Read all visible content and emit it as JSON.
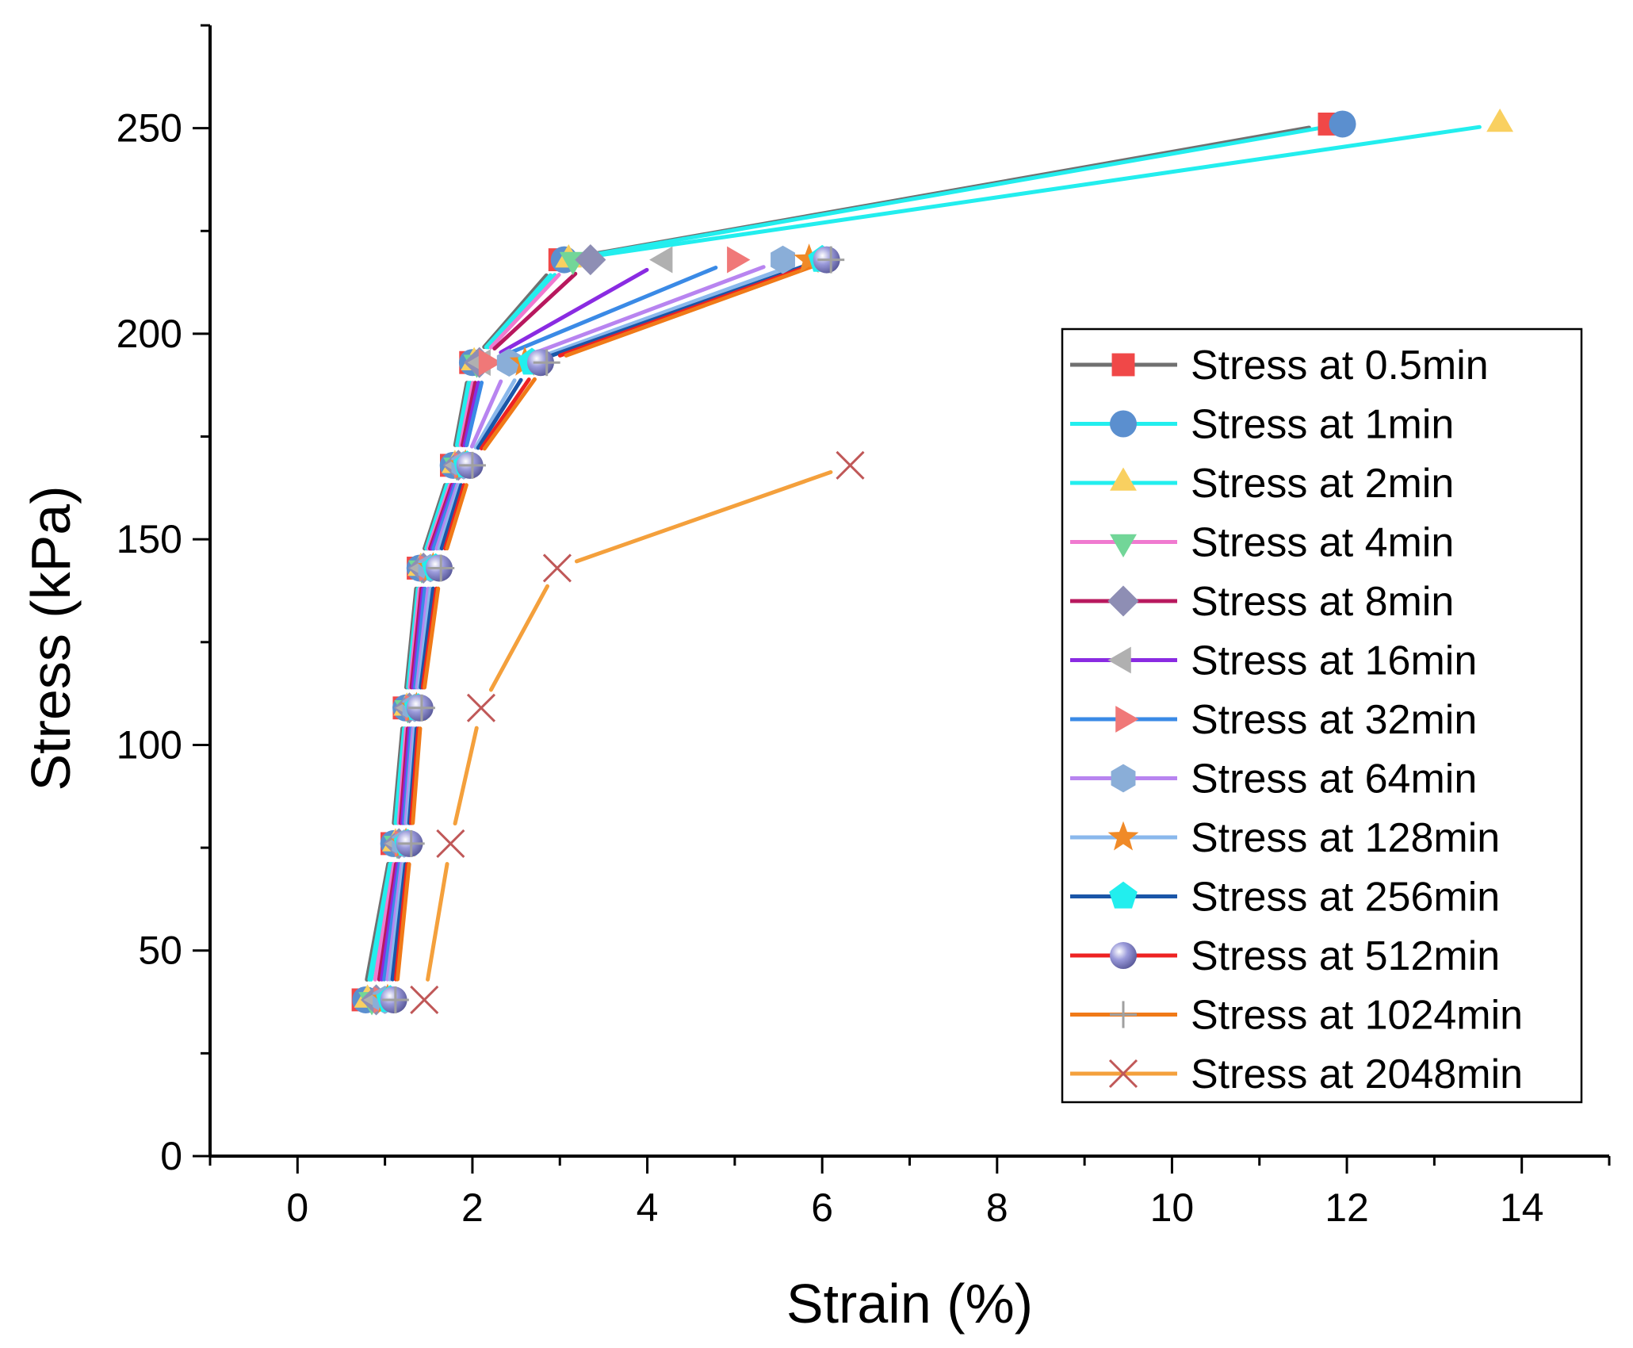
{
  "chart_data": {
    "type": "line",
    "title": "",
    "xlabel": "Strain (%)",
    "ylabel": "Stress (kPa)",
    "xlim": [
      -1,
      15
    ],
    "ylim": [
      0,
      275
    ],
    "xticks": [
      0,
      2,
      4,
      6,
      8,
      10,
      12,
      14
    ],
    "yticks": [
      0,
      50,
      100,
      150,
      200,
      250
    ],
    "grid": false,
    "legend_position": "right",
    "y": [
      38,
      76,
      109,
      143,
      168,
      193,
      218,
      251
    ],
    "series": [
      {
        "name": "Stress at 0.5min",
        "line_color": "#707070",
        "marker": "square",
        "marker_color": "#f04848",
        "x": [
          0.75,
          1.08,
          1.22,
          1.38,
          1.76,
          1.98,
          3.0,
          11.8
        ],
        "y": [
          38,
          76,
          109,
          143,
          168,
          193,
          218,
          251
        ]
      },
      {
        "name": "Stress at 1min",
        "line_color": "#22eeee",
        "marker": "circle",
        "marker_color": "#5b8fcf",
        "x": [
          0.78,
          1.1,
          1.24,
          1.4,
          1.78,
          2.0,
          3.05,
          11.95
        ],
        "y": [
          38,
          76,
          109,
          143,
          168,
          193,
          218,
          251
        ]
      },
      {
        "name": "Stress at 2min",
        "line_color": "#22eeee",
        "marker": "triangle-up",
        "marker_color": "#f9d060",
        "x": [
          0.8,
          1.12,
          1.25,
          1.41,
          1.8,
          2.02,
          3.1,
          13.75
        ],
        "y": [
          38,
          76,
          109,
          143,
          168,
          193,
          218,
          251
        ]
      },
      {
        "name": "Stress at 4min",
        "line_color": "#f07ad0",
        "marker": "triangle-down",
        "marker_color": "#72d698",
        "x": [
          0.85,
          1.14,
          1.26,
          1.42,
          1.82,
          2.05,
          3.15
        ],
        "y": [
          38,
          76,
          109,
          143,
          168,
          193,
          218
        ]
      },
      {
        "name": "Stress at 8min",
        "line_color": "#b8185e",
        "marker": "diamond",
        "marker_color": "#8e8eb4",
        "x": [
          0.9,
          1.16,
          1.28,
          1.44,
          1.84,
          2.08,
          3.35
        ],
        "y": [
          38,
          76,
          109,
          143,
          168,
          193,
          218
        ]
      },
      {
        "name": "Stress at 16min",
        "line_color": "#8a2be2",
        "marker": "triangle-left",
        "marker_color": "#b0b0b0",
        "x": [
          0.93,
          1.18,
          1.3,
          1.46,
          1.86,
          2.12,
          4.2
        ],
        "y": [
          38,
          76,
          109,
          143,
          168,
          193,
          218
        ]
      },
      {
        "name": "Stress at 32min",
        "line_color": "#3a8ae6",
        "marker": "triangle-right",
        "marker_color": "#f07878",
        "x": [
          0.96,
          1.2,
          1.32,
          1.48,
          1.88,
          2.16,
          5.0
        ],
        "y": [
          38,
          76,
          109,
          143,
          168,
          193,
          218
        ]
      },
      {
        "name": "Stress at 64min",
        "line_color": "#b884f0",
        "marker": "hexagon",
        "marker_color": "#8aaed8",
        "x": [
          1.0,
          1.22,
          1.34,
          1.52,
          1.9,
          2.42,
          5.55
        ],
        "y": [
          38,
          76,
          109,
          143,
          168,
          193,
          218
        ]
      },
      {
        "name": "Stress at 128min",
        "line_color": "#8ab8ec",
        "marker": "star",
        "marker_color": "#f08a28",
        "x": [
          1.03,
          1.24,
          1.36,
          1.55,
          1.92,
          2.6,
          5.85
        ],
        "y": [
          38,
          76,
          109,
          143,
          168,
          193,
          218
        ]
      },
      {
        "name": "Stress at 256min",
        "line_color": "#1a56a8",
        "marker": "pentagon",
        "marker_color": "#22eeee",
        "x": [
          1.06,
          1.26,
          1.38,
          1.58,
          1.94,
          2.68,
          6.0
        ],
        "y": [
          38,
          76,
          109,
          143,
          168,
          193,
          218
        ]
      },
      {
        "name": "Stress at 512min",
        "line_color": "#ee2222",
        "marker": "sphere",
        "marker_color": "#9a9ada",
        "x": [
          1.1,
          1.28,
          1.4,
          1.62,
          1.97,
          2.78,
          6.05
        ],
        "y": [
          38,
          76,
          109,
          143,
          168,
          193,
          218
        ]
      },
      {
        "name": "Stress at 1024min",
        "line_color": "#f07a18",
        "marker": "plus",
        "marker_color": "#a0a0a0",
        "x": [
          1.12,
          1.3,
          1.42,
          1.64,
          2.0,
          2.85,
          6.1
        ],
        "y": [
          38,
          76,
          109,
          143,
          168,
          193,
          218
        ]
      },
      {
        "name": "Stress at 2048min",
        "line_color": "#f4a03c",
        "marker": "x",
        "marker_color": "#c05858",
        "x": [
          1.45,
          1.75,
          2.1,
          2.97,
          6.32
        ],
        "y": [
          38,
          76,
          109,
          143,
          168
        ]
      }
    ]
  }
}
